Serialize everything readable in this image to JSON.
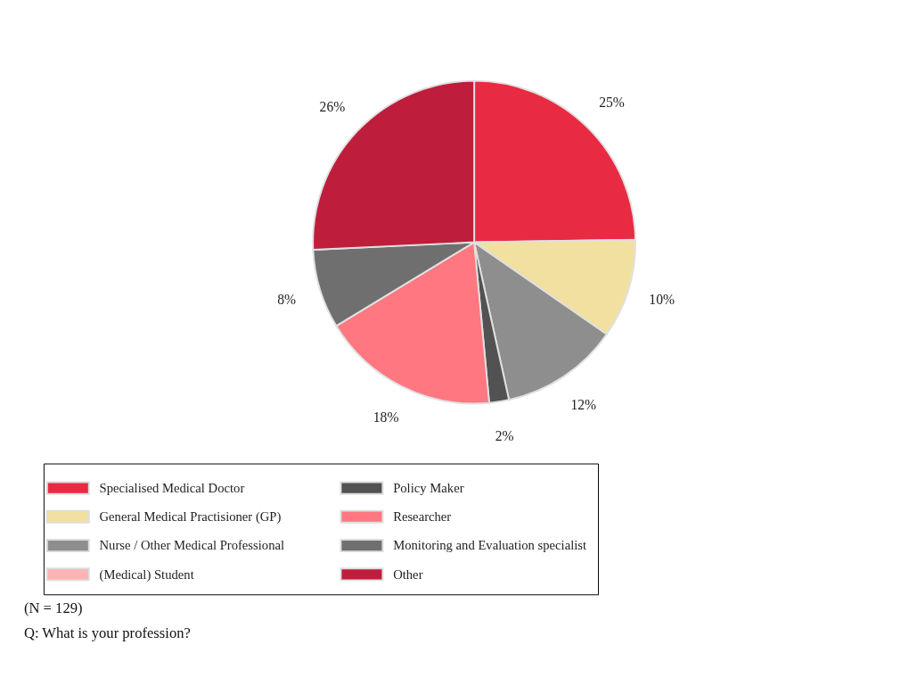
{
  "chart_data": {
    "type": "pie",
    "categories": [
      "Specialised Medical Doctor",
      "General Medical Practisioner (GP)",
      "Nurse / Other Medical Professional",
      "(Medical) Student",
      "Policy Maker",
      "Researcher",
      "Monitoring and Evaluation specialist",
      "Other"
    ],
    "values": [
      25,
      10,
      12,
      0,
      2,
      18,
      8,
      26
    ],
    "colors": [
      "#e92a43",
      "#f2e0a0",
      "#8e8e8e",
      "#ffb3b5",
      "#525252",
      "#ff7780",
      "#6f6f6f",
      "#be1e3c"
    ],
    "value_labels": [
      "25%",
      "10%",
      "12%",
      null,
      "2%",
      "18%",
      "8%",
      "26%"
    ],
    "legend": "bottom",
    "annotations": [
      "(N = 129)",
      "Q: What is your profession?"
    ]
  }
}
